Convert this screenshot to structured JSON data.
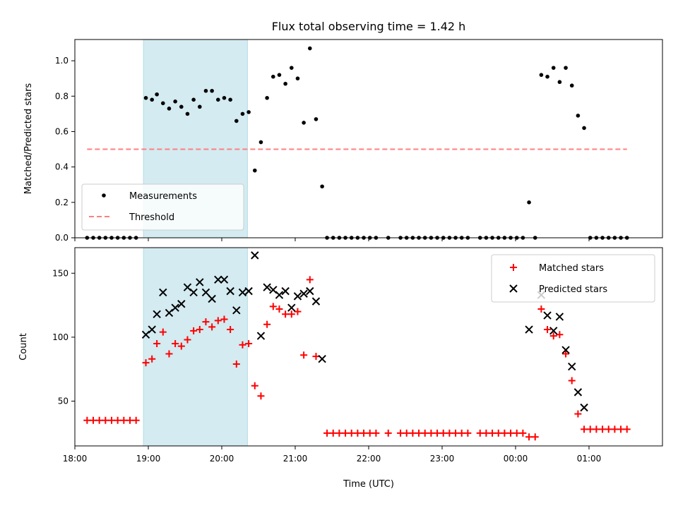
{
  "chart_data": [
    {
      "type": "scatter",
      "title": "Flux total observing time = 1.42 h",
      "xlabel": "",
      "ylabel": "Matched/Predicted stars",
      "xlim": [
        "18:00",
        "02:00"
      ],
      "ylim": [
        0,
        1.12
      ],
      "y_ticks": [
        "0.0",
        "0.2",
        "0.4",
        "0.6",
        "0.8",
        "1.0"
      ],
      "highlight_span": {
        "start": "18:56",
        "end": "20:21",
        "color": "#d3ebf1"
      },
      "legend": {
        "position": "lower left"
      },
      "series": [
        {
          "name": "Measurements",
          "marker": "dot",
          "color": "#000000",
          "points": [
            [
              "18:10",
              0
            ],
            [
              "18:15",
              0
            ],
            [
              "18:20",
              0
            ],
            [
              "18:25",
              0
            ],
            [
              "18:30",
              0
            ],
            [
              "18:35",
              0
            ],
            [
              "18:40",
              0
            ],
            [
              "18:45",
              0
            ],
            [
              "18:50",
              0
            ],
            [
              "18:58",
              0.79
            ],
            [
              "19:03",
              0.78
            ],
            [
              "19:07",
              0.81
            ],
            [
              "19:12",
              0.76
            ],
            [
              "19:17",
              0.73
            ],
            [
              "19:22",
              0.77
            ],
            [
              "19:27",
              0.74
            ],
            [
              "19:32",
              0.7
            ],
            [
              "19:37",
              0.78
            ],
            [
              "19:42",
              0.74
            ],
            [
              "19:47",
              0.83
            ],
            [
              "19:52",
              0.83
            ],
            [
              "19:57",
              0.78
            ],
            [
              "20:02",
              0.79
            ],
            [
              "20:07",
              0.78
            ],
            [
              "20:12",
              0.66
            ],
            [
              "20:17",
              0.7
            ],
            [
              "20:22",
              0.71
            ],
            [
              "20:27",
              0.38
            ],
            [
              "20:32",
              0.54
            ],
            [
              "20:37",
              0.79
            ],
            [
              "20:42",
              0.91
            ],
            [
              "20:47",
              0.92
            ],
            [
              "20:52",
              0.87
            ],
            [
              "20:57",
              0.96
            ],
            [
              "21:02",
              0.9
            ],
            [
              "21:07",
              0.65
            ],
            [
              "21:12",
              1.07
            ],
            [
              "21:17",
              0.67
            ],
            [
              "21:22",
              0.29
            ],
            [
              "21:26",
              0
            ],
            [
              "21:31",
              0
            ],
            [
              "21:36",
              0
            ],
            [
              "21:41",
              0
            ],
            [
              "21:46",
              0
            ],
            [
              "21:51",
              0
            ],
            [
              "21:56",
              0
            ],
            [
              "22:01",
              0
            ],
            [
              "22:06",
              0
            ],
            [
              "22:16",
              0
            ],
            [
              "22:26",
              0
            ],
            [
              "22:31",
              0
            ],
            [
              "22:36",
              0
            ],
            [
              "22:41",
              0
            ],
            [
              "22:46",
              0
            ],
            [
              "22:51",
              0
            ],
            [
              "22:56",
              0
            ],
            [
              "23:01",
              0
            ],
            [
              "23:06",
              0
            ],
            [
              "23:11",
              0
            ],
            [
              "23:16",
              0
            ],
            [
              "23:21",
              0
            ],
            [
              "23:31",
              0
            ],
            [
              "23:36",
              0
            ],
            [
              "23:41",
              0
            ],
            [
              "23:46",
              0
            ],
            [
              "23:51",
              0
            ],
            [
              "23:56",
              0
            ],
            [
              "00:01",
              0
            ],
            [
              "00:06",
              0
            ],
            [
              "00:16",
              0
            ],
            [
              "00:11",
              0.2
            ],
            [
              "00:21",
              0.92
            ],
            [
              "00:26",
              0.91
            ],
            [
              "00:31",
              0.96
            ],
            [
              "00:36",
              0.88
            ],
            [
              "00:41",
              0.96
            ],
            [
              "00:46",
              0.86
            ],
            [
              "00:51",
              0.69
            ],
            [
              "00:56",
              0.62
            ],
            [
              "01:01",
              0
            ],
            [
              "01:06",
              0
            ],
            [
              "01:11",
              0
            ],
            [
              "01:16",
              0
            ],
            [
              "01:21",
              0
            ],
            [
              "01:26",
              0
            ],
            [
              "01:31",
              0
            ]
          ]
        },
        {
          "name": "Threshold",
          "marker": "dashed-line",
          "color": "#ff7f7f",
          "points": [
            [
              "18:10",
              0.5
            ],
            [
              "01:31",
              0.5
            ]
          ]
        }
      ]
    },
    {
      "type": "scatter",
      "title": "",
      "xlabel": "Time (UTC)",
      "ylabel": "Count",
      "xlim": [
        "18:00",
        "02:00"
      ],
      "ylim": [
        15,
        170
      ],
      "x_ticks": [
        "18:00",
        "19:00",
        "20:00",
        "21:00",
        "22:00",
        "23:00",
        "00:00",
        "01:00"
      ],
      "y_ticks": [
        "50",
        "100",
        "150"
      ],
      "highlight_span": {
        "start": "18:56",
        "end": "20:21",
        "color": "#d3ebf1"
      },
      "legend": {
        "position": "upper right"
      },
      "series": [
        {
          "name": "Matched stars",
          "marker": "plus",
          "color": "#ff0000",
          "points": [
            [
              "18:10",
              35
            ],
            [
              "18:15",
              35
            ],
            [
              "18:20",
              35
            ],
            [
              "18:25",
              35
            ],
            [
              "18:30",
              35
            ],
            [
              "18:35",
              35
            ],
            [
              "18:40",
              35
            ],
            [
              "18:45",
              35
            ],
            [
              "18:50",
              35
            ],
            [
              "18:58",
              80
            ],
            [
              "19:03",
              83
            ],
            [
              "19:07",
              95
            ],
            [
              "19:12",
              104
            ],
            [
              "19:17",
              87
            ],
            [
              "19:22",
              95
            ],
            [
              "19:27",
              93
            ],
            [
              "19:32",
              98
            ],
            [
              "19:37",
              105
            ],
            [
              "19:42",
              106
            ],
            [
              "19:47",
              112
            ],
            [
              "19:52",
              108
            ],
            [
              "19:57",
              113
            ],
            [
              "20:02",
              114
            ],
            [
              "20:07",
              106
            ],
            [
              "20:12",
              79
            ],
            [
              "20:17",
              94
            ],
            [
              "20:22",
              95
            ],
            [
              "20:27",
              62
            ],
            [
              "20:32",
              54
            ],
            [
              "20:37",
              110
            ],
            [
              "20:42",
              124
            ],
            [
              "20:47",
              122
            ],
            [
              "20:52",
              118
            ],
            [
              "20:57",
              118
            ],
            [
              "21:02",
              120
            ],
            [
              "21:07",
              86
            ],
            [
              "21:12",
              145
            ],
            [
              "21:17",
              85
            ],
            [
              "21:26",
              25
            ],
            [
              "21:31",
              25
            ],
            [
              "21:36",
              25
            ],
            [
              "21:41",
              25
            ],
            [
              "21:46",
              25
            ],
            [
              "21:51",
              25
            ],
            [
              "21:56",
              25
            ],
            [
              "22:01",
              25
            ],
            [
              "22:06",
              25
            ],
            [
              "22:16",
              25
            ],
            [
              "22:26",
              25
            ],
            [
              "22:31",
              25
            ],
            [
              "22:36",
              25
            ],
            [
              "22:41",
              25
            ],
            [
              "22:46",
              25
            ],
            [
              "22:51",
              25
            ],
            [
              "22:56",
              25
            ],
            [
              "23:01",
              25
            ],
            [
              "23:06",
              25
            ],
            [
              "23:11",
              25
            ],
            [
              "23:16",
              25
            ],
            [
              "23:21",
              25
            ],
            [
              "23:31",
              25
            ],
            [
              "23:36",
              25
            ],
            [
              "23:41",
              25
            ],
            [
              "23:46",
              25
            ],
            [
              "23:51",
              25
            ],
            [
              "23:56",
              25
            ],
            [
              "00:01",
              25
            ],
            [
              "00:06",
              25
            ],
            [
              "00:11",
              22
            ],
            [
              "00:16",
              22
            ],
            [
              "00:21",
              122
            ],
            [
              "00:26",
              106
            ],
            [
              "00:31",
              101
            ],
            [
              "00:36",
              102
            ],
            [
              "00:41",
              87
            ],
            [
              "00:46",
              66
            ],
            [
              "00:51",
              40
            ],
            [
              "00:56",
              28
            ],
            [
              "01:01",
              28
            ],
            [
              "01:06",
              28
            ],
            [
              "01:11",
              28
            ],
            [
              "01:16",
              28
            ],
            [
              "01:21",
              28
            ],
            [
              "01:26",
              28
            ],
            [
              "01:31",
              28
            ]
          ]
        },
        {
          "name": "Predicted stars",
          "marker": "x",
          "color": "#000000",
          "points": [
            [
              "18:58",
              102
            ],
            [
              "19:03",
              106
            ],
            [
              "19:07",
              118
            ],
            [
              "19:12",
              135
            ],
            [
              "19:17",
              119
            ],
            [
              "19:22",
              123
            ],
            [
              "19:27",
              126
            ],
            [
              "19:32",
              139
            ],
            [
              "19:37",
              135
            ],
            [
              "19:42",
              143
            ],
            [
              "19:47",
              135
            ],
            [
              "19:52",
              130
            ],
            [
              "19:57",
              145
            ],
            [
              "20:02",
              145
            ],
            [
              "20:07",
              136
            ],
            [
              "20:12",
              121
            ],
            [
              "20:17",
              135
            ],
            [
              "20:22",
              136
            ],
            [
              "20:27",
              164
            ],
            [
              "20:32",
              101
            ],
            [
              "20:37",
              139
            ],
            [
              "20:42",
              137
            ],
            [
              "20:47",
              133
            ],
            [
              "20:52",
              136
            ],
            [
              "20:57",
              123
            ],
            [
              "21:02",
              132
            ],
            [
              "21:07",
              134
            ],
            [
              "21:12",
              136
            ],
            [
              "21:17",
              128
            ],
            [
              "21:22",
              83
            ],
            [
              "00:11",
              106
            ],
            [
              "00:21",
              133
            ],
            [
              "00:26",
              117
            ],
            [
              "00:31",
              105
            ],
            [
              "00:36",
              116
            ],
            [
              "00:41",
              90
            ],
            [
              "00:46",
              77
            ],
            [
              "00:51",
              57
            ],
            [
              "00:56",
              45
            ]
          ]
        }
      ]
    }
  ]
}
